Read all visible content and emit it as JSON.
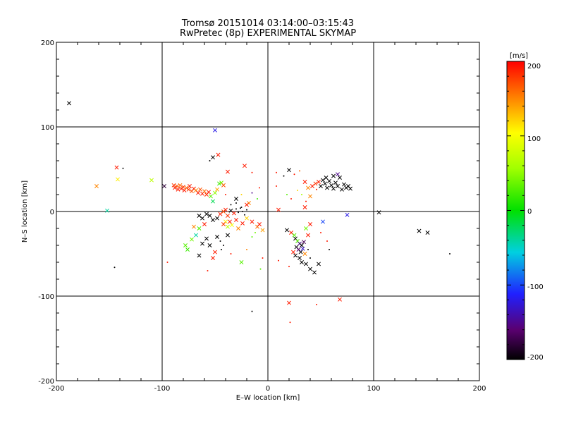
{
  "chart_data": {
    "type": "scatter",
    "title": "Tromsø 20151014 03:14:00–03:15:43",
    "subtitle": "RwPretec (8p) EXPERIMENTAL SKYMAP",
    "xlabel": "E–W location [km]",
    "ylabel": "N–S location [km]",
    "xlim": [
      -200,
      200
    ],
    "ylim": [
      -200,
      200
    ],
    "x_ticks": [
      "-200",
      "-100",
      "0",
      "100",
      "200"
    ],
    "y_ticks": [
      "-200",
      "-100",
      "0",
      "100",
      "200"
    ],
    "grid": true,
    "colorbar": {
      "label": "[m/s]",
      "range": [
        -200,
        200
      ],
      "tick_labels": [
        "200",
        "100",
        "0",
        "-100",
        "-200"
      ],
      "colormap": "rainbow (black-purple-blue-cyan-green-yellow-orange-red)"
    },
    "points": [
      {
        "x": -188,
        "y": 128,
        "v": -200,
        "m": "x"
      },
      {
        "x": -152,
        "y": 1,
        "v": -40,
        "m": "x"
      },
      {
        "x": -162,
        "y": 30,
        "v": 150,
        "m": "x"
      },
      {
        "x": -143,
        "y": 52,
        "v": 190,
        "m": "x"
      },
      {
        "x": -137,
        "y": 51,
        "v": -200,
        "m": "d"
      },
      {
        "x": -142,
        "y": 38,
        "v": 110,
        "m": "x"
      },
      {
        "x": -110,
        "y": 37,
        "v": 70,
        "m": "x"
      },
      {
        "x": -98,
        "y": 30,
        "v": -180,
        "m": "x"
      },
      {
        "x": -145,
        "y": -66,
        "v": -200,
        "m": "d"
      },
      {
        "x": -95,
        "y": -60,
        "v": 190,
        "m": "d"
      },
      {
        "x": -89,
        "y": 31,
        "v": 180,
        "m": "x"
      },
      {
        "x": -88,
        "y": 28,
        "v": 190,
        "m": "x"
      },
      {
        "x": -86,
        "y": 30,
        "v": 170,
        "m": "x"
      },
      {
        "x": -85,
        "y": 26,
        "v": 190,
        "m": "x"
      },
      {
        "x": -83,
        "y": 31,
        "v": 160,
        "m": "x"
      },
      {
        "x": -82,
        "y": 27,
        "v": 190,
        "m": "x"
      },
      {
        "x": -80,
        "y": 29,
        "v": 180,
        "m": "x"
      },
      {
        "x": -79,
        "y": 25,
        "v": 190,
        "m": "x"
      },
      {
        "x": -77,
        "y": 28,
        "v": 160,
        "m": "x"
      },
      {
        "x": -75,
        "y": 26,
        "v": 180,
        "m": "x"
      },
      {
        "x": -74,
        "y": 30,
        "v": 190,
        "m": "x"
      },
      {
        "x": -72,
        "y": 24,
        "v": 170,
        "m": "x"
      },
      {
        "x": -70,
        "y": 27,
        "v": 190,
        "m": "x"
      },
      {
        "x": -68,
        "y": 25,
        "v": 150,
        "m": "x"
      },
      {
        "x": -66,
        "y": 22,
        "v": 190,
        "m": "x"
      },
      {
        "x": -64,
        "y": 26,
        "v": 170,
        "m": "x"
      },
      {
        "x": -62,
        "y": 21,
        "v": 190,
        "m": "x"
      },
      {
        "x": -60,
        "y": 24,
        "v": 160,
        "m": "x"
      },
      {
        "x": -58,
        "y": 20,
        "v": 180,
        "m": "x"
      },
      {
        "x": -56,
        "y": 23,
        "v": 190,
        "m": "x"
      },
      {
        "x": -54,
        "y": 18,
        "v": 30,
        "m": "x"
      },
      {
        "x": -52,
        "y": 12,
        "v": -20,
        "m": "x"
      },
      {
        "x": -50,
        "y": 22,
        "v": 50,
        "m": "x"
      },
      {
        "x": -48,
        "y": 26,
        "v": 140,
        "m": "x"
      },
      {
        "x": -46,
        "y": 33,
        "v": 20,
        "m": "x"
      },
      {
        "x": -44,
        "y": 34,
        "v": 40,
        "m": "x"
      },
      {
        "x": -42,
        "y": 31,
        "v": 170,
        "m": "x"
      },
      {
        "x": -50,
        "y": 96,
        "v": -120,
        "m": "x"
      },
      {
        "x": -47,
        "y": 67,
        "v": 190,
        "m": "x"
      },
      {
        "x": -52,
        "y": 64,
        "v": -200,
        "m": "x"
      },
      {
        "x": -55,
        "y": 60,
        "v": -200,
        "m": "d"
      },
      {
        "x": -38,
        "y": 47,
        "v": 190,
        "m": "x"
      },
      {
        "x": -22,
        "y": 54,
        "v": 190,
        "m": "x"
      },
      {
        "x": -15,
        "y": 46,
        "v": 190,
        "m": "d"
      },
      {
        "x": -40,
        "y": 20,
        "v": 190,
        "m": "d"
      },
      {
        "x": -30,
        "y": 15,
        "v": -200,
        "m": "x"
      },
      {
        "x": -25,
        "y": 20,
        "v": 120,
        "m": "d"
      },
      {
        "x": -18,
        "y": 10,
        "v": 150,
        "m": "x"
      },
      {
        "x": -15,
        "y": 22,
        "v": -150,
        "m": "d"
      },
      {
        "x": -10,
        "y": 15,
        "v": 20,
        "m": "d"
      },
      {
        "x": -8,
        "y": 28,
        "v": 190,
        "m": "d"
      },
      {
        "x": -20,
        "y": 8,
        "v": 190,
        "m": "x"
      },
      {
        "x": -55,
        "y": -5,
        "v": -200,
        "m": "x"
      },
      {
        "x": -58,
        "y": -3,
        "v": -200,
        "m": "x"
      },
      {
        "x": -62,
        "y": -8,
        "v": -200,
        "m": "x"
      },
      {
        "x": -65,
        "y": -5,
        "v": -200,
        "m": "x"
      },
      {
        "x": -52,
        "y": -10,
        "v": -200,
        "m": "x"
      },
      {
        "x": -48,
        "y": -8,
        "v": -200,
        "m": "x"
      },
      {
        "x": -45,
        "y": -3,
        "v": 190,
        "m": "x"
      },
      {
        "x": -42,
        "y": 0,
        "v": 170,
        "m": "x"
      },
      {
        "x": -40,
        "y": 2,
        "v": 190,
        "m": "x"
      },
      {
        "x": -38,
        "y": -5,
        "v": 180,
        "m": "x"
      },
      {
        "x": -35,
        "y": 1,
        "v": -200,
        "m": "x"
      },
      {
        "x": -32,
        "y": -2,
        "v": 190,
        "m": "x"
      },
      {
        "x": -30,
        "y": 3,
        "v": -200,
        "m": "d"
      },
      {
        "x": -28,
        "y": -1,
        "v": -200,
        "m": "d"
      },
      {
        "x": -26,
        "y": 4,
        "v": -200,
        "m": "d"
      },
      {
        "x": -24,
        "y": 0,
        "v": -200,
        "m": "d"
      },
      {
        "x": -22,
        "y": -4,
        "v": -200,
        "m": "d"
      },
      {
        "x": -20,
        "y": 2,
        "v": -200,
        "m": "d"
      },
      {
        "x": -35,
        "y": 8,
        "v": -200,
        "m": "d"
      },
      {
        "x": -30,
        "y": 10,
        "v": -200,
        "m": "d"
      },
      {
        "x": -25,
        "y": 5,
        "v": -200,
        "m": "d"
      },
      {
        "x": -40,
        "y": -12,
        "v": 110,
        "m": "x"
      },
      {
        "x": -42,
        "y": -15,
        "v": 180,
        "m": "x"
      },
      {
        "x": -38,
        "y": -18,
        "v": 70,
        "m": "x"
      },
      {
        "x": -36,
        "y": -12,
        "v": 190,
        "m": "x"
      },
      {
        "x": -34,
        "y": -16,
        "v": 100,
        "m": "x"
      },
      {
        "x": -30,
        "y": -10,
        "v": 190,
        "m": "x"
      },
      {
        "x": -28,
        "y": -20,
        "v": 150,
        "m": "x"
      },
      {
        "x": -24,
        "y": -14,
        "v": 190,
        "m": "x"
      },
      {
        "x": -20,
        "y": -8,
        "v": 120,
        "m": "x"
      },
      {
        "x": -15,
        "y": -12,
        "v": 190,
        "m": "x"
      },
      {
        "x": -10,
        "y": -18,
        "v": 160,
        "m": "x"
      },
      {
        "x": -8,
        "y": -15,
        "v": 190,
        "m": "x"
      },
      {
        "x": -5,
        "y": -22,
        "v": 140,
        "m": "x"
      },
      {
        "x": -12,
        "y": -25,
        "v": 40,
        "m": "d"
      },
      {
        "x": -60,
        "y": -15,
        "v": 190,
        "m": "x"
      },
      {
        "x": -65,
        "y": -20,
        "v": 30,
        "m": "x"
      },
      {
        "x": -70,
        "y": -18,
        "v": 150,
        "m": "x"
      },
      {
        "x": -68,
        "y": -28,
        "v": -40,
        "m": "x"
      },
      {
        "x": -72,
        "y": -33,
        "v": 40,
        "m": "x"
      },
      {
        "x": -78,
        "y": -40,
        "v": 30,
        "m": "x"
      },
      {
        "x": -76,
        "y": -45,
        "v": 20,
        "m": "x"
      },
      {
        "x": -58,
        "y": -32,
        "v": -200,
        "m": "x"
      },
      {
        "x": -62,
        "y": -38,
        "v": -200,
        "m": "x"
      },
      {
        "x": -55,
        "y": -40,
        "v": -200,
        "m": "x"
      },
      {
        "x": -65,
        "y": -52,
        "v": -200,
        "m": "x"
      },
      {
        "x": -48,
        "y": -30,
        "v": -200,
        "m": "x"
      },
      {
        "x": -45,
        "y": -35,
        "v": -200,
        "m": "d"
      },
      {
        "x": -42,
        "y": -40,
        "v": -200,
        "m": "d"
      },
      {
        "x": -44,
        "y": -45,
        "v": -200,
        "m": "d"
      },
      {
        "x": -50,
        "y": -48,
        "v": 190,
        "m": "x"
      },
      {
        "x": -52,
        "y": -55,
        "v": 190,
        "m": "x"
      },
      {
        "x": -35,
        "y": -50,
        "v": 190,
        "m": "d"
      },
      {
        "x": -38,
        "y": -28,
        "v": -200,
        "m": "x"
      },
      {
        "x": -57,
        "y": -70,
        "v": 190,
        "m": "d"
      },
      {
        "x": -25,
        "y": -60,
        "v": 30,
        "m": "x"
      },
      {
        "x": -20,
        "y": -45,
        "v": 150,
        "m": "d"
      },
      {
        "x": -15,
        "y": -30,
        "v": 30,
        "m": "d"
      },
      {
        "x": -7,
        "y": -68,
        "v": 30,
        "m": "d"
      },
      {
        "x": -15,
        "y": -118,
        "v": -200,
        "m": "d"
      },
      {
        "x": -5,
        "y": -55,
        "v": 190,
        "m": "d"
      },
      {
        "x": 8,
        "y": 46,
        "v": 190,
        "m": "d"
      },
      {
        "x": 20,
        "y": 49,
        "v": -200,
        "m": "x"
      },
      {
        "x": 15,
        "y": 42,
        "v": -200,
        "m": "d"
      },
      {
        "x": 25,
        "y": 44,
        "v": 190,
        "m": "d"
      },
      {
        "x": 30,
        "y": 48,
        "v": 160,
        "m": "d"
      },
      {
        "x": 35,
        "y": 35,
        "v": 190,
        "m": "x"
      },
      {
        "x": 28,
        "y": 25,
        "v": 120,
        "m": "d"
      },
      {
        "x": 32,
        "y": 20,
        "v": 60,
        "m": "d"
      },
      {
        "x": 38,
        "y": 28,
        "v": 150,
        "m": "x"
      },
      {
        "x": 42,
        "y": 30,
        "v": 190,
        "m": "x"
      },
      {
        "x": 45,
        "y": 33,
        "v": 180,
        "m": "x"
      },
      {
        "x": 48,
        "y": 35,
        "v": 190,
        "m": "x"
      },
      {
        "x": 50,
        "y": 30,
        "v": -200,
        "m": "x"
      },
      {
        "x": 52,
        "y": 37,
        "v": -200,
        "m": "x"
      },
      {
        "x": 54,
        "y": 33,
        "v": -200,
        "m": "x"
      },
      {
        "x": 56,
        "y": 28,
        "v": -200,
        "m": "x"
      },
      {
        "x": 58,
        "y": 36,
        "v": -200,
        "m": "x"
      },
      {
        "x": 60,
        "y": 31,
        "v": -200,
        "m": "x"
      },
      {
        "x": 62,
        "y": 27,
        "v": -200,
        "m": "x"
      },
      {
        "x": 64,
        "y": 34,
        "v": -200,
        "m": "x"
      },
      {
        "x": 66,
        "y": 30,
        "v": -200,
        "m": "x"
      },
      {
        "x": 68,
        "y": 40,
        "v": -200,
        "m": "x"
      },
      {
        "x": 70,
        "y": 26,
        "v": -200,
        "m": "x"
      },
      {
        "x": 72,
        "y": 32,
        "v": -200,
        "m": "x"
      },
      {
        "x": 74,
        "y": 28,
        "v": -200,
        "m": "x"
      },
      {
        "x": 76,
        "y": 30,
        "v": -200,
        "m": "x"
      },
      {
        "x": 78,
        "y": 27,
        "v": -200,
        "m": "x"
      },
      {
        "x": 55,
        "y": 40,
        "v": -200,
        "m": "x"
      },
      {
        "x": 62,
        "y": 42,
        "v": -200,
        "m": "x"
      },
      {
        "x": 66,
        "y": 44,
        "v": -150,
        "m": "x"
      },
      {
        "x": 46,
        "y": 26,
        "v": 190,
        "m": "d"
      },
      {
        "x": 40,
        "y": 18,
        "v": 150,
        "m": "x"
      },
      {
        "x": 36,
        "y": 12,
        "v": 190,
        "m": "d"
      },
      {
        "x": 35,
        "y": 5,
        "v": 190,
        "m": "x"
      },
      {
        "x": 22,
        "y": 15,
        "v": 190,
        "m": "d"
      },
      {
        "x": 18,
        "y": 20,
        "v": 30,
        "m": "d"
      },
      {
        "x": 8,
        "y": 30,
        "v": 190,
        "m": "d"
      },
      {
        "x": 10,
        "y": 2,
        "v": 190,
        "m": "x"
      },
      {
        "x": 75,
        "y": -4,
        "v": -120,
        "m": "x"
      },
      {
        "x": 105,
        "y": -1,
        "v": -200,
        "m": "x"
      },
      {
        "x": 143,
        "y": -23,
        "v": -200,
        "m": "x"
      },
      {
        "x": 151,
        "y": -25,
        "v": -200,
        "m": "x"
      },
      {
        "x": 172,
        "y": -50,
        "v": -200,
        "m": "d"
      },
      {
        "x": 52,
        "y": -12,
        "v": -100,
        "m": "x"
      },
      {
        "x": 40,
        "y": -15,
        "v": 190,
        "m": "x"
      },
      {
        "x": 36,
        "y": -20,
        "v": 40,
        "m": "x"
      },
      {
        "x": 18,
        "y": -22,
        "v": -200,
        "m": "x"
      },
      {
        "x": 22,
        "y": -25,
        "v": 190,
        "m": "x"
      },
      {
        "x": 25,
        "y": -28,
        "v": 30,
        "m": "x"
      },
      {
        "x": 26,
        "y": -32,
        "v": -200,
        "m": "x"
      },
      {
        "x": 28,
        "y": -35,
        "v": 30,
        "m": "x"
      },
      {
        "x": 30,
        "y": -38,
        "v": -150,
        "m": "x"
      },
      {
        "x": 32,
        "y": -40,
        "v": -200,
        "m": "x"
      },
      {
        "x": 34,
        "y": -36,
        "v": -170,
        "m": "x"
      },
      {
        "x": 27,
        "y": -42,
        "v": -200,
        "m": "x"
      },
      {
        "x": 29,
        "y": -45,
        "v": -160,
        "m": "x"
      },
      {
        "x": 31,
        "y": -48,
        "v": -200,
        "m": "x"
      },
      {
        "x": 33,
        "y": -44,
        "v": -130,
        "m": "x"
      },
      {
        "x": 24,
        "y": -48,
        "v": 190,
        "m": "x"
      },
      {
        "x": 26,
        "y": -52,
        "v": -200,
        "m": "x"
      },
      {
        "x": 30,
        "y": -55,
        "v": -200,
        "m": "x"
      },
      {
        "x": 35,
        "y": -50,
        "v": 150,
        "m": "x"
      },
      {
        "x": 38,
        "y": -45,
        "v": -200,
        "m": "d"
      },
      {
        "x": 32,
        "y": -60,
        "v": -200,
        "m": "x"
      },
      {
        "x": 36,
        "y": -62,
        "v": -200,
        "m": "x"
      },
      {
        "x": 40,
        "y": -68,
        "v": -200,
        "m": "x"
      },
      {
        "x": 44,
        "y": -72,
        "v": -200,
        "m": "x"
      },
      {
        "x": 48,
        "y": -62,
        "v": -200,
        "m": "x"
      },
      {
        "x": 40,
        "y": -55,
        "v": -200,
        "m": "d"
      },
      {
        "x": 58,
        "y": -45,
        "v": -200,
        "m": "d"
      },
      {
        "x": 56,
        "y": -35,
        "v": 190,
        "m": "d"
      },
      {
        "x": 50,
        "y": -25,
        "v": 190,
        "m": "d"
      },
      {
        "x": 38,
        "y": -28,
        "v": 190,
        "m": "x"
      },
      {
        "x": 10,
        "y": -58,
        "v": 190,
        "m": "d"
      },
      {
        "x": 20,
        "y": -65,
        "v": 190,
        "m": "d"
      },
      {
        "x": 20,
        "y": -108,
        "v": 190,
        "m": "x"
      },
      {
        "x": 46,
        "y": -110,
        "v": 190,
        "m": "d"
      },
      {
        "x": 68,
        "y": -104,
        "v": 190,
        "m": "x"
      },
      {
        "x": 21,
        "y": -131,
        "v": 190,
        "m": "d"
      }
    ]
  }
}
